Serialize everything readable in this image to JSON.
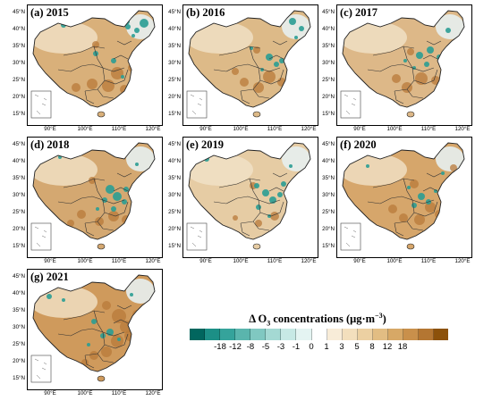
{
  "panels": [
    {
      "label": "(a) 2015",
      "fill": "#d9b07a"
    },
    {
      "label": "(b) 2016",
      "fill": "#ddba88"
    },
    {
      "label": "(c) 2017",
      "fill": "#ddb888"
    },
    {
      "label": "(d) 2018",
      "fill": "#d4a871"
    },
    {
      "label": "(e) 2019",
      "fill": "#e6cca4"
    },
    {
      "label": "(f) 2020",
      "fill": "#d6a66b"
    },
    {
      "label": "(g) 2021",
      "fill": "#cf9a5c"
    }
  ],
  "lat_labels": [
    "45°N",
    "40°N",
    "35°N",
    "30°N",
    "25°N",
    "20°N",
    "15°N"
  ],
  "lon_labels": [
    "90°E",
    "100°E",
    "110°E",
    "120°E"
  ],
  "legend": {
    "title_prefix": "Δ O",
    "title_sub": "3",
    "title_suffix": " concentrations (μg·m",
    "title_sup": "−3",
    "title_end": ")",
    "colors": [
      "#01665e",
      "#1c8f86",
      "#35a39b",
      "#5ab5ad",
      "#80c8c1",
      "#a4d9d3",
      "#c7e9e5",
      "#e4f4f2",
      "#ffffff",
      "#f8ecd8",
      "#f3dfbd",
      "#ecd0a2",
      "#e2bd83",
      "#d7a866",
      "#c9904b",
      "#b47632",
      "#8c510a"
    ],
    "ticks": [
      "-18",
      "-12",
      "-8",
      "-5",
      "-3",
      "-1",
      "0",
      "1",
      "3",
      "5",
      "8",
      "12",
      "18"
    ]
  }
}
